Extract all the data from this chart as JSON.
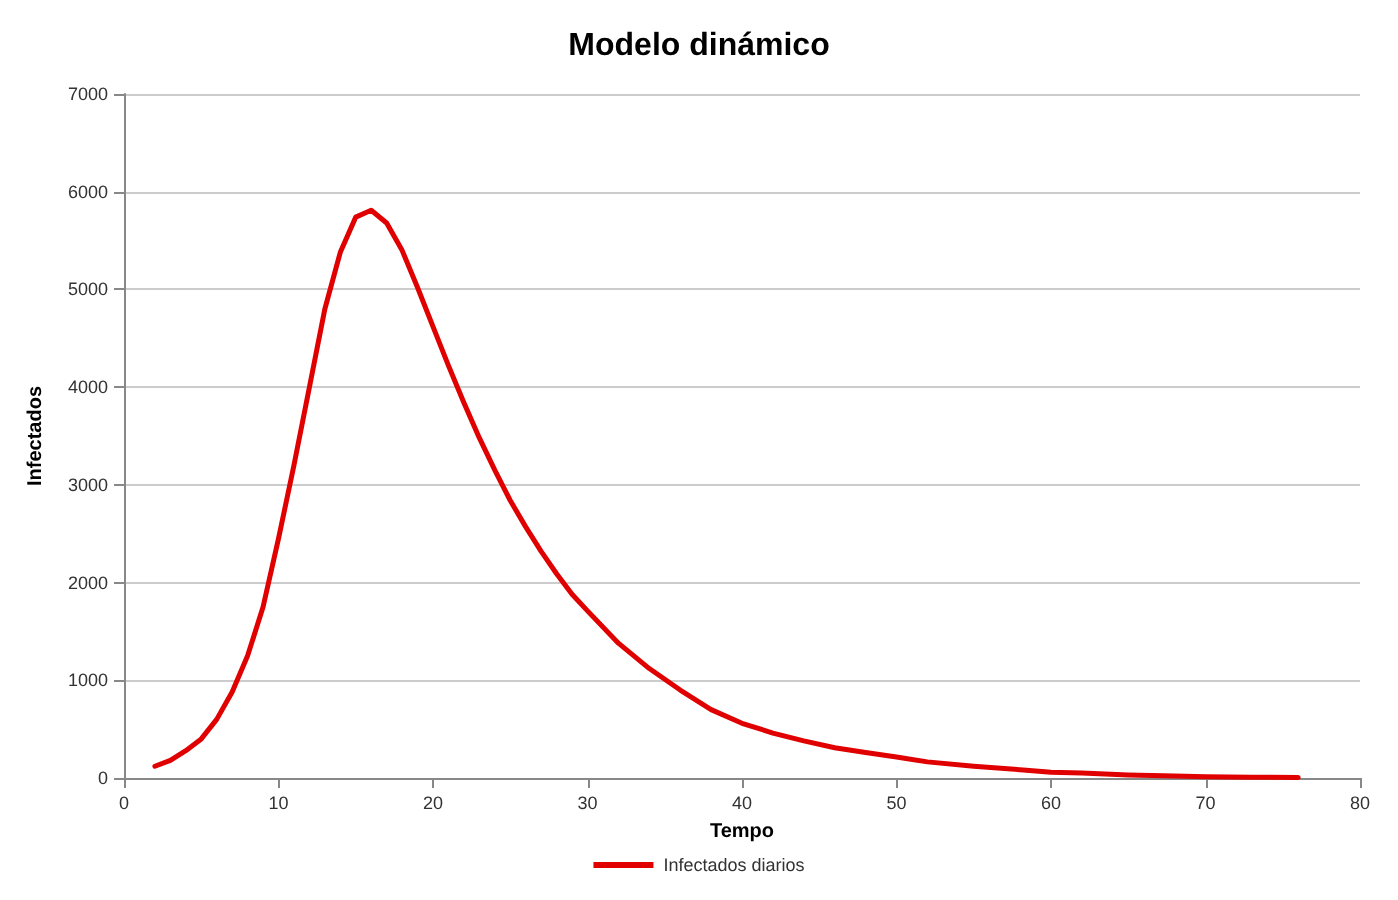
{
  "chart_data": {
    "type": "line",
    "title": "Modelo dinámico",
    "xlabel": "Tempo",
    "ylabel": "Infectados",
    "x": [
      2,
      3,
      4,
      5,
      6,
      7,
      8,
      9,
      10,
      11,
      12,
      13,
      14,
      15,
      16,
      17,
      18,
      19,
      20,
      21,
      22,
      23,
      24,
      25,
      26,
      27,
      28,
      29,
      30,
      32,
      34,
      36,
      38,
      40,
      42,
      44,
      46,
      48,
      50,
      52,
      55,
      58,
      60,
      62,
      65,
      68,
      70,
      73,
      76
    ],
    "series": [
      {
        "name": "Infectados diarios",
        "color": "#e00000",
        "values": [
          120,
          180,
          280,
          400,
          600,
          880,
          1250,
          1750,
          2450,
          3200,
          4000,
          4800,
          5380,
          5740,
          5810,
          5680,
          5400,
          5020,
          4620,
          4220,
          3840,
          3480,
          3150,
          2840,
          2570,
          2320,
          2090,
          1880,
          1710,
          1380,
          1120,
          900,
          700,
          560,
          460,
          380,
          310,
          260,
          215,
          165,
          120,
          85,
          60,
          50,
          30,
          20,
          12,
          8,
          5
        ]
      }
    ],
    "xlim": [
      0,
      80
    ],
    "xticks": [
      0,
      10,
      20,
      30,
      40,
      50,
      60,
      70,
      80
    ],
    "ylim": [
      0,
      7000
    ],
    "yticks": [
      0,
      1000,
      2000,
      3000,
      4000,
      5000,
      6000,
      7000
    ],
    "grid": "y",
    "legend": "bottom",
    "marker": "none",
    "line_style": "solid"
  }
}
